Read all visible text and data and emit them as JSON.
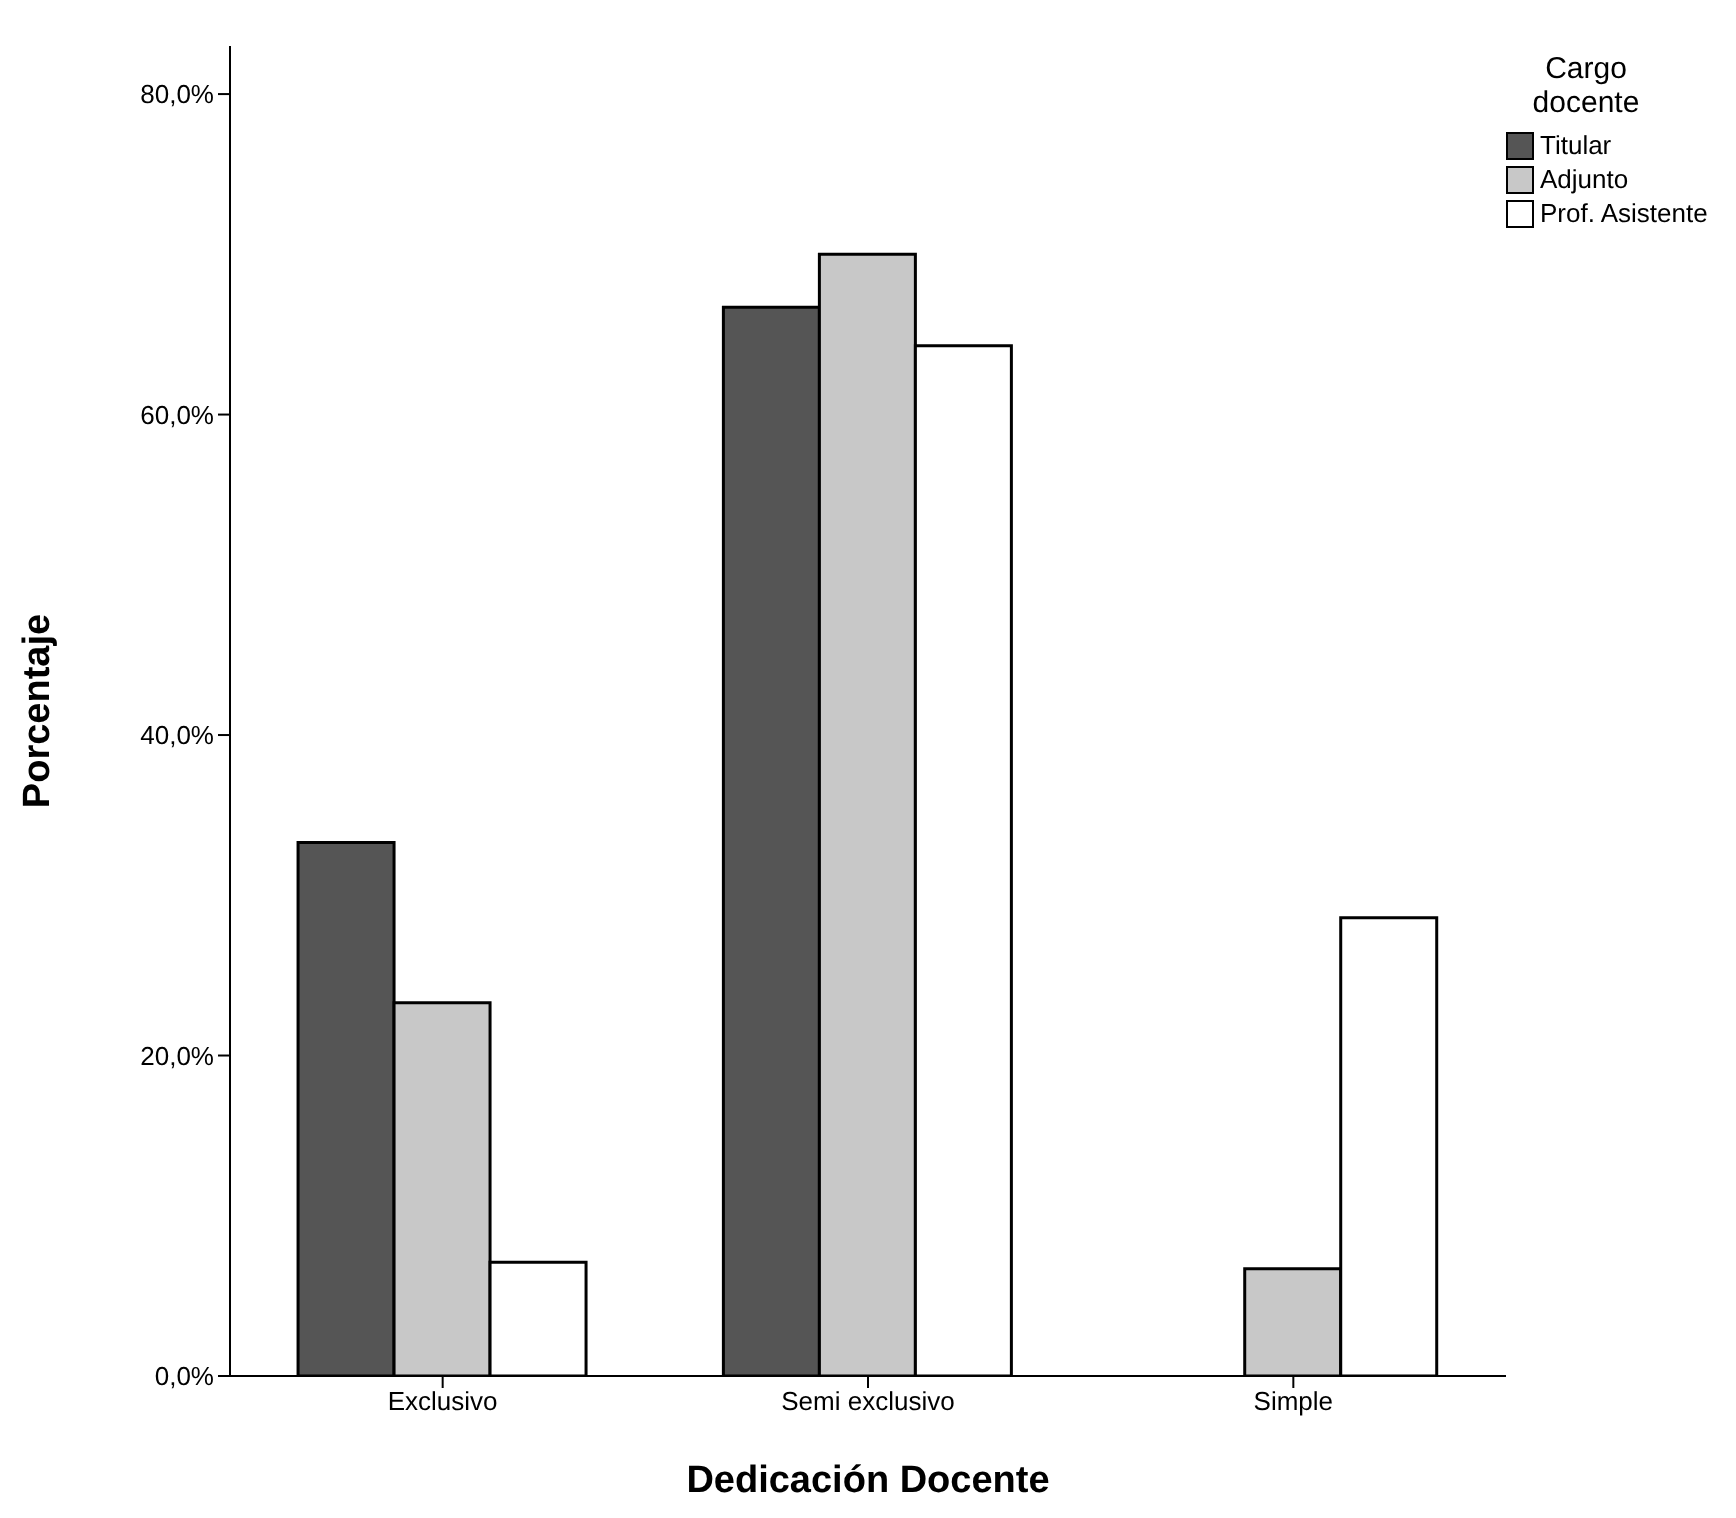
{
  "chart_data": {
    "type": "bar",
    "xlabel": "Dedicación Docente",
    "ylabel": "Porcentaje",
    "legend_title": "Cargo docente",
    "categories": [
      "Exclusivo",
      "Semi exclusivo",
      "Simple"
    ],
    "series": [
      {
        "name": "Titular",
        "color": "#555555",
        "values": [
          33.3,
          66.7,
          0
        ]
      },
      {
        "name": "Adjunto",
        "color": "#c8c8c8",
        "values": [
          23.3,
          70.0,
          6.7
        ]
      },
      {
        "name": "Prof. Asistente",
        "color": "#ffffff",
        "values": [
          7.1,
          64.3,
          28.6
        ]
      }
    ],
    "ylim": [
      0,
      83
    ],
    "yticks": [
      {
        "value": 0,
        "label": "0,0%"
      },
      {
        "value": 20,
        "label": "20,0%"
      },
      {
        "value": 40,
        "label": "40,0%"
      },
      {
        "value": 60,
        "label": "60,0%"
      },
      {
        "value": 80,
        "label": "80,0%"
      }
    ],
    "grid": false,
    "legend": "top right"
  }
}
